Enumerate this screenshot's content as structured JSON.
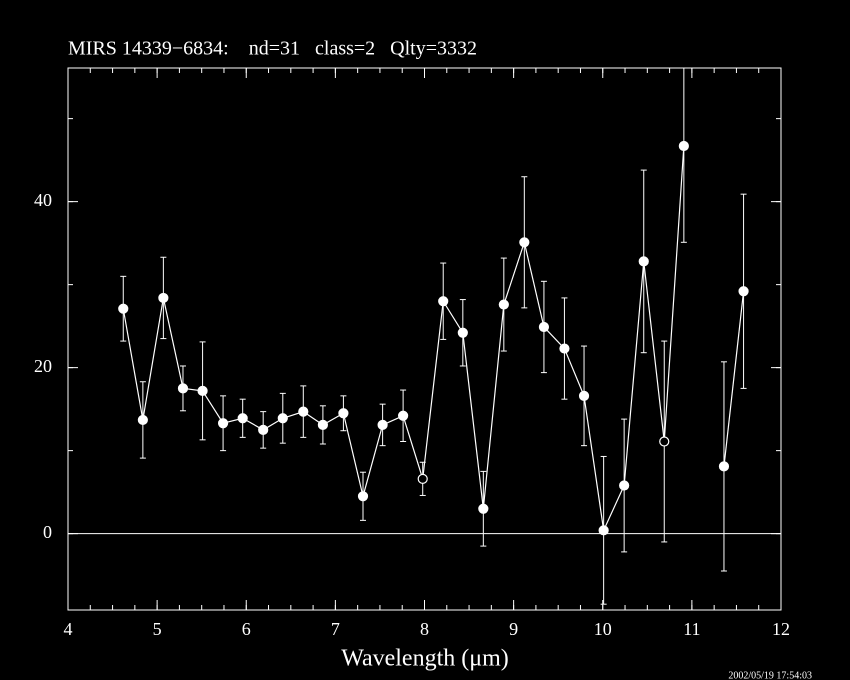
{
  "chart_data": {
    "type": "errorbar_line",
    "title": "MIRS 14339−6834:    nd=31   class=2   Qlty=3332",
    "xlabel": "Wavelength (μm)",
    "timestamp": "2002/05/19 17:54:03",
    "x": [
      4.62,
      4.84,
      5.07,
      5.29,
      5.51,
      5.74,
      5.96,
      6.19,
      6.41,
      6.64,
      6.86,
      7.09,
      7.31,
      7.53,
      7.76,
      7.98,
      8.21,
      8.43,
      8.66,
      8.89,
      9.12,
      9.34,
      9.57,
      9.79,
      10.01,
      10.24,
      10.46,
      10.69,
      10.91,
      11.13,
      11.36,
      11.58
    ],
    "values": [
      27.1,
      13.7,
      28.4,
      17.5,
      17.2,
      13.3,
      13.9,
      12.5,
      13.9,
      14.7,
      13.1,
      14.5,
      4.5,
      13.1,
      14.2,
      6.6,
      28.0,
      24.2,
      3.0,
      27.6,
      35.1,
      24.9,
      22.3,
      16.6,
      0.4,
      5.8,
      32.8,
      11.1,
      46.7,
      null,
      8.1,
      29.2
    ],
    "errors": [
      3.9,
      4.6,
      4.9,
      2.7,
      5.9,
      3.3,
      2.3,
      2.2,
      3.0,
      3.1,
      2.3,
      2.1,
      2.9,
      2.5,
      3.1,
      2.0,
      4.6,
      4.0,
      4.5,
      5.6,
      7.9,
      5.5,
      6.1,
      6.0,
      8.9,
      8.0,
      11.0,
      12.1,
      11.6,
      null,
      12.6,
      11.7
    ],
    "marker_styles": [
      "filled",
      "filled",
      "filled",
      "filled",
      "filled",
      "filled",
      "filled",
      "filled",
      "filled",
      "filled",
      "filled",
      "filled",
      "filled",
      "filled",
      "filled",
      "open",
      "filled",
      "filled",
      "filled",
      "filled",
      "filled",
      "filled",
      "filled",
      "filled",
      "filled",
      "filled",
      "filled",
      "open",
      "filled",
      null,
      "filled",
      "filled"
    ],
    "color": "#ffffff",
    "xlim": [
      4,
      12
    ],
    "xticks": [
      4,
      5,
      6,
      7,
      8,
      9,
      10,
      11,
      12
    ],
    "xminor_step": 0.25,
    "ylim": [
      -9.2,
      56.1
    ],
    "yticks": [
      0,
      20,
      40
    ],
    "yminor_step": 10,
    "zero_line": true
  }
}
